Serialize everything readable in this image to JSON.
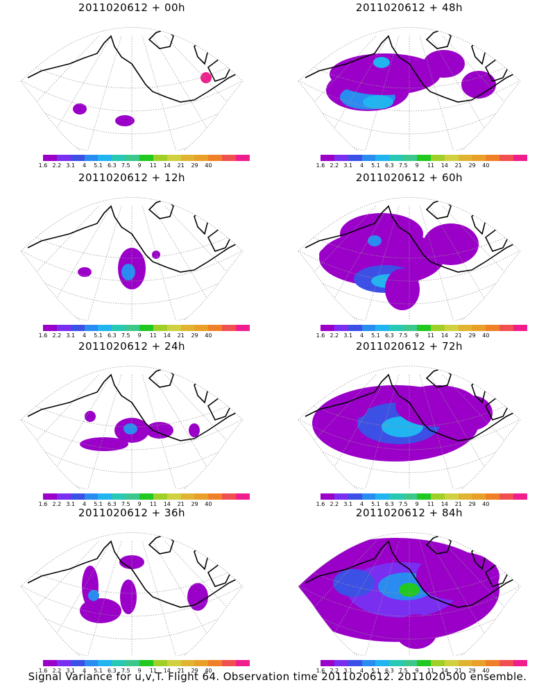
{
  "panels": [
    {
      "title": "2011020612 + 00h"
    },
    {
      "title": "2011020612 + 48h"
    },
    {
      "title": "2011020612 + 12h"
    },
    {
      "title": "2011020612 + 60h"
    },
    {
      "title": "2011020612 + 24h"
    },
    {
      "title": "2011020612 + 72h"
    },
    {
      "title": "2011020612 + 36h"
    },
    {
      "title": "2011020612 + 84h"
    }
  ],
  "colorbar": {
    "colors": [
      "#9a00c8",
      "#7a2ef0",
      "#3c50e6",
      "#2a8cf0",
      "#20b4f0",
      "#28c8b4",
      "#3cc88c",
      "#20c820",
      "#a0d028",
      "#d0d040",
      "#e0b430",
      "#e8a028",
      "#f08028",
      "#f05050",
      "#f01e8c"
    ],
    "ticks": [
      "1.6",
      "2.2",
      "3.1",
      "4",
      "5.1",
      "6.3",
      "7.5",
      "9",
      "11",
      "14",
      "21",
      "29",
      "40"
    ]
  },
  "footer": "Signal Variance for u,v,T. Flight 64. Observation time 2011020612. 2011020500 ensemble."
}
